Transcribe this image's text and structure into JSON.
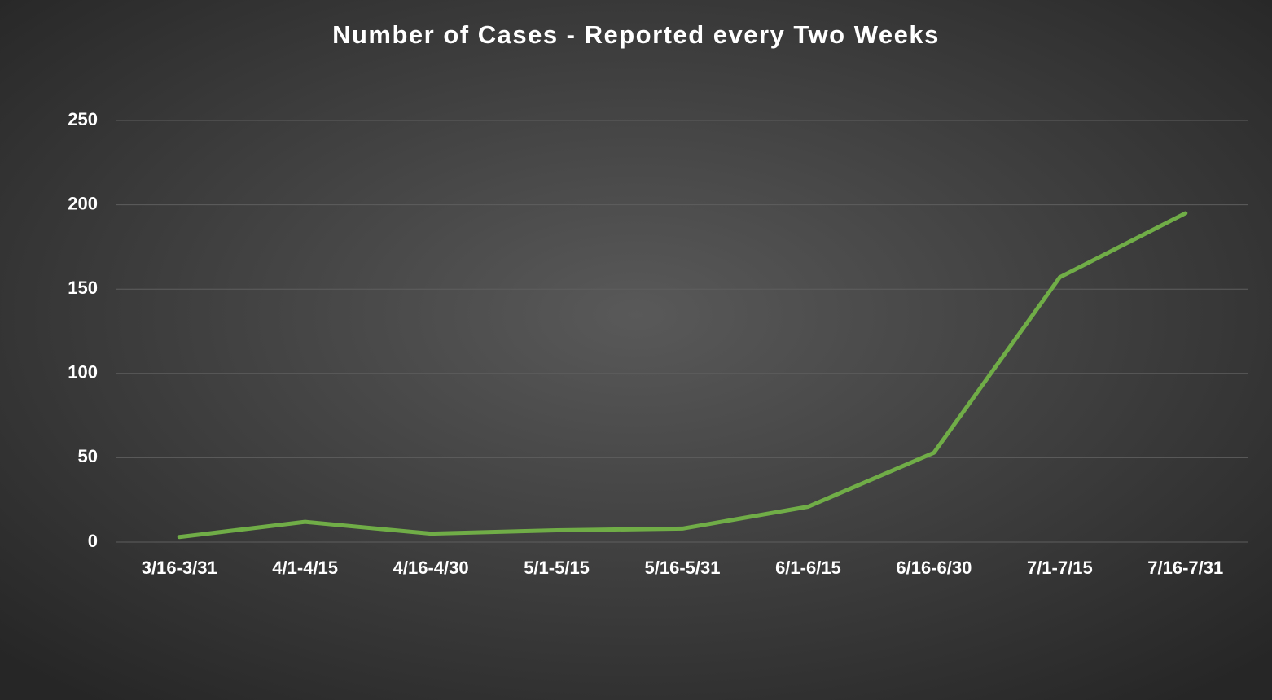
{
  "chart_data": {
    "type": "line",
    "title": "Number of Cases - Reported every Two Weeks",
    "categories": [
      "3/16-3/31",
      "4/1-4/15",
      "4/16-4/30",
      "5/1-5/15",
      "5/16-5/31",
      "6/1-6/15",
      "6/16-6/30",
      "7/1-7/15",
      "7/16-7/31"
    ],
    "values": [
      3,
      12,
      5,
      7,
      8,
      21,
      53,
      157,
      195
    ],
    "color": "#70ad47",
    "ylim": [
      0,
      250
    ],
    "yticks": [
      0,
      50,
      100,
      150,
      200,
      250
    ],
    "grid": true
  }
}
